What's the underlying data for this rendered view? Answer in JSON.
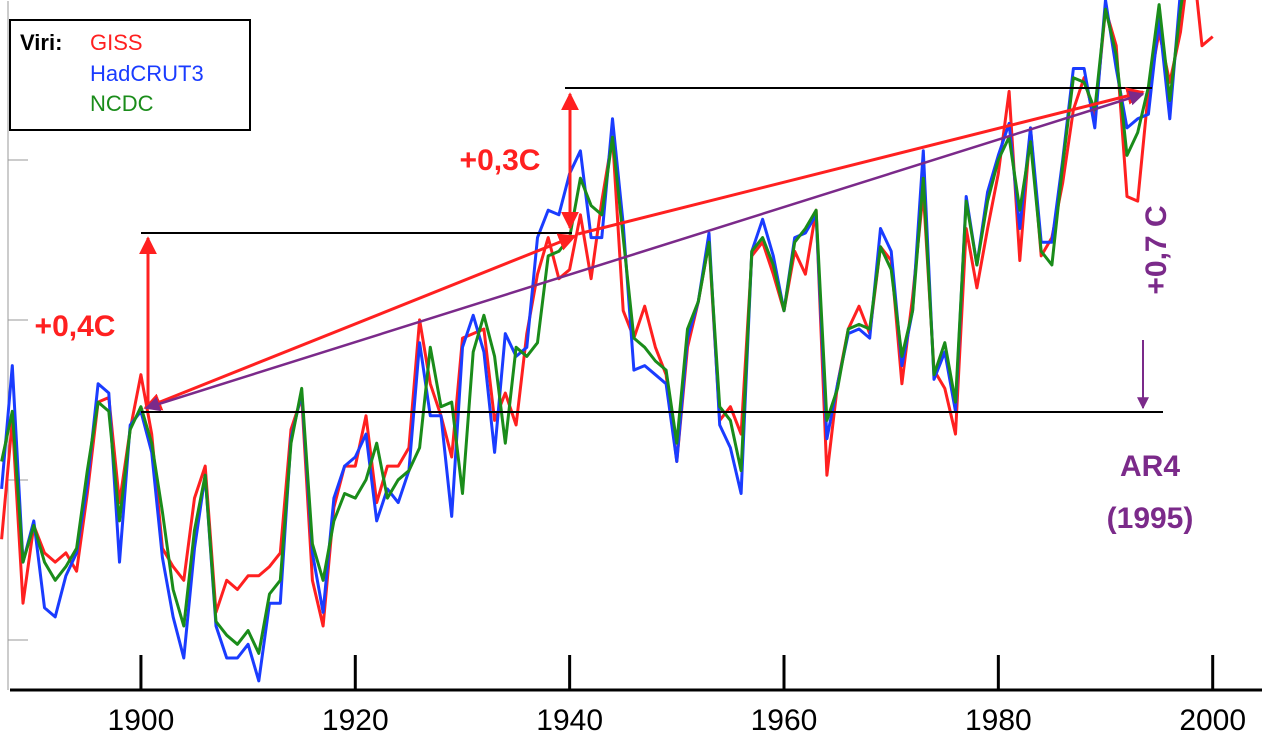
{
  "chart_data": {
    "type": "line",
    "legend_title": "Viri:",
    "legend_position": "upper left",
    "x": [
      1887,
      1888,
      1889,
      1890,
      1891,
      1892,
      1893,
      1894,
      1895,
      1896,
      1897,
      1898,
      1899,
      1900,
      1901,
      1902,
      1903,
      1904,
      1905,
      1906,
      1907,
      1908,
      1909,
      1910,
      1911,
      1912,
      1913,
      1914,
      1915,
      1916,
      1917,
      1918,
      1919,
      1920,
      1921,
      1922,
      1923,
      1924,
      1925,
      1926,
      1927,
      1928,
      1929,
      1930,
      1931,
      1932,
      1933,
      1934,
      1935,
      1936,
      1937,
      1938,
      1939,
      1940,
      1941,
      1942,
      1943,
      1944,
      1945,
      1946,
      1947,
      1948,
      1949,
      1950,
      1951,
      1952,
      1953,
      1954,
      1955,
      1956,
      1957,
      1958,
      1959,
      1960,
      1961,
      1962,
      1963,
      1964,
      1965,
      1966,
      1967,
      1968,
      1969,
      1970,
      1971,
      1972,
      1973,
      1974,
      1975,
      1976,
      1977,
      1978,
      1979,
      1980,
      1981,
      1982,
      1983,
      1984,
      1985,
      1986,
      1987,
      1988,
      1989,
      1990,
      1991,
      1992,
      1993,
      1994,
      1995,
      1996,
      1997,
      1998,
      1999,
      2000
    ],
    "series": [
      {
        "name": "GISS",
        "color": "#ff2020",
        "values": [
          -0.28,
          -0.02,
          -0.42,
          -0.25,
          -0.31,
          -0.33,
          -0.31,
          -0.35,
          -0.18,
          0.02,
          0.03,
          -0.2,
          -0.04,
          0.08,
          -0.05,
          -0.3,
          -0.34,
          -0.37,
          -0.19,
          -0.12,
          -0.44,
          -0.37,
          -0.39,
          -0.36,
          -0.36,
          -0.34,
          -0.31,
          -0.04,
          0.03,
          -0.37,
          -0.47,
          -0.21,
          -0.12,
          -0.12,
          -0.01,
          -0.2,
          -0.12,
          -0.12,
          -0.08,
          0.2,
          0.06,
          -0.01,
          -0.1,
          0.16,
          0.17,
          0.18,
          -0.02,
          0.04,
          -0.03,
          0.17,
          0.3,
          0.38,
          0.29,
          0.31,
          0.43,
          0.29,
          0.46,
          0.6,
          0.22,
          0.16,
          0.23,
          0.14,
          0.08,
          -0.11,
          0.14,
          0.24,
          0.37,
          -0.02,
          0.01,
          -0.05,
          0.34,
          0.37,
          0.3,
          0.22,
          0.35,
          0.3,
          0.44,
          -0.14,
          0.06,
          0.18,
          0.23,
          0.17,
          0.36,
          0.33,
          0.06,
          0.25,
          0.48,
          0.09,
          0.05,
          -0.05,
          0.4,
          0.27,
          0.4,
          0.52,
          0.7,
          0.33,
          0.62,
          0.34,
          0.38,
          0.5,
          0.66,
          0.73,
          0.64,
          0.88,
          0.8,
          0.47,
          0.46,
          0.7,
          0.83,
          0.72,
          0.83,
          1.02,
          0.8,
          0.82
        ]
      },
      {
        "name": "HadCRUT3",
        "color": "#1a3cff",
        "values": [
          -0.17,
          0.1,
          -0.33,
          -0.24,
          -0.43,
          -0.45,
          -0.36,
          -0.31,
          -0.16,
          0.06,
          0.04,
          -0.33,
          -0.03,
          0.0,
          -0.09,
          -0.32,
          -0.45,
          -0.54,
          -0.3,
          -0.14,
          -0.47,
          -0.54,
          -0.54,
          -0.51,
          -0.59,
          -0.42,
          -0.42,
          -0.06,
          0.04,
          -0.31,
          -0.44,
          -0.19,
          -0.12,
          -0.1,
          -0.05,
          -0.24,
          -0.17,
          -0.2,
          -0.13,
          0.15,
          -0.01,
          -0.01,
          -0.23,
          0.14,
          0.21,
          0.13,
          -0.09,
          0.17,
          0.12,
          0.14,
          0.38,
          0.44,
          0.43,
          0.52,
          0.57,
          0.38,
          0.38,
          0.64,
          0.41,
          0.09,
          0.1,
          0.08,
          0.06,
          -0.11,
          0.16,
          0.24,
          0.39,
          -0.03,
          -0.08,
          -0.18,
          0.35,
          0.42,
          0.34,
          0.22,
          0.38,
          0.39,
          0.43,
          -0.06,
          0.06,
          0.17,
          0.18,
          0.16,
          0.4,
          0.35,
          0.1,
          0.22,
          0.57,
          0.07,
          0.13,
          0.0,
          0.47,
          0.32,
          0.48,
          0.56,
          0.63,
          0.4,
          0.62,
          0.37,
          0.37,
          0.55,
          0.75,
          0.75,
          0.62,
          0.9,
          0.75,
          0.62,
          0.64,
          0.65,
          0.86,
          0.64,
          0.92,
          1.03,
          null,
          null
        ]
      },
      {
        "name": "NCDC",
        "color": "#1a8c1a",
        "values": [
          -0.11,
          0,
          -0.33,
          -0.25,
          -0.33,
          -0.37,
          -0.34,
          -0.3,
          -0.13,
          0.02,
          0,
          -0.24,
          -0.04,
          0.01,
          -0.07,
          -0.22,
          -0.39,
          -0.47,
          -0.26,
          -0.14,
          -0.46,
          -0.49,
          -0.51,
          -0.48,
          -0.53,
          -0.4,
          -0.37,
          -0.07,
          0.05,
          -0.29,
          -0.37,
          -0.24,
          -0.18,
          -0.19,
          -0.15,
          -0.07,
          -0.19,
          -0.15,
          -0.13,
          -0.08,
          0.14,
          0.01,
          0.02,
          -0.18,
          0.13,
          0.21,
          0.12,
          -0.07,
          0.14,
          0.12,
          0.15,
          0.34,
          0.35,
          0.38,
          0.51,
          0.45,
          0.43,
          0.6,
          0.38,
          0.16,
          0.14,
          0.11,
          0.09,
          -0.07,
          0.18,
          0.24,
          0.37,
          0.01,
          -0.02,
          -0.13,
          0.35,
          0.38,
          0.32,
          0.22,
          0.37,
          0.4,
          0.44,
          -0.02,
          0.05,
          0.18,
          0.19,
          0.18,
          0.36,
          0.31,
          0.12,
          0.22,
          0.51,
          0.08,
          0.15,
          0.02,
          0.46,
          0.32,
          0.46,
          0.55,
          0.6,
          0.44,
          0.59,
          0.35,
          0.32,
          0.54,
          0.73,
          0.72,
          0.66,
          0.88,
          0.78,
          0.56,
          0.61,
          0.71,
          0.89,
          0.68,
          0.88,
          1.03,
          null,
          null
        ]
      }
    ],
    "xlim": [
      1886.85,
      2004.6
    ],
    "xticks": [
      1900,
      1920,
      1940,
      1960,
      1980,
      2000
    ],
    "ylim": [
      -0.61,
      0.9
    ],
    "annotations": [
      "+0,4C",
      "+0,3C",
      "+0,7 C",
      "AR4",
      "(1995)"
    ]
  }
}
